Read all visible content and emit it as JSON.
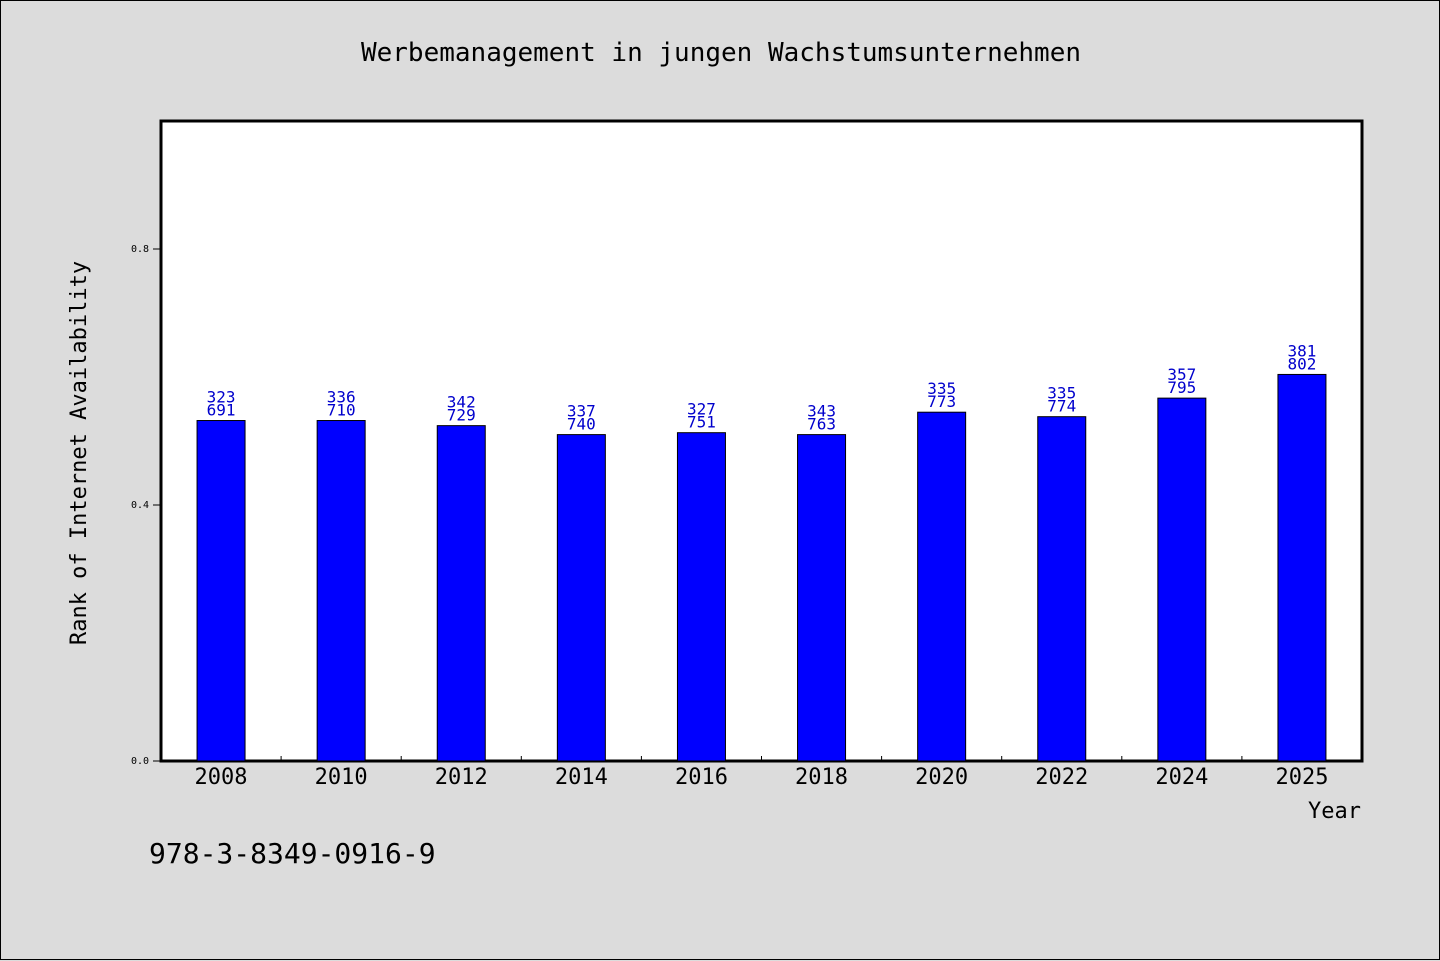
{
  "chart_data": {
    "type": "bar",
    "title": "Werbemanagement in jungen Wachstumsunternehmen",
    "xlabel": "Year",
    "ylabel": "Rank of Internet Availability",
    "categories": [
      "2008",
      "2010",
      "2012",
      "2014",
      "2016",
      "2018",
      "2020",
      "2022",
      "2024",
      "2025"
    ],
    "values": [
      0.532,
      0.532,
      0.524,
      0.51,
      0.513,
      0.51,
      0.545,
      0.538,
      0.567,
      0.604
    ],
    "data_labels_top": [
      "323",
      "336",
      "342",
      "337",
      "327",
      "343",
      "335",
      "335",
      "357",
      "381"
    ],
    "data_labels_bottom": [
      "691",
      "710",
      "729",
      "740",
      "751",
      "763",
      "773",
      "774",
      "795",
      "802"
    ],
    "yticks": [
      0.0,
      0.4,
      0.8
    ],
    "ytick_labels": [
      "0.0",
      "0.4",
      "0.8"
    ],
    "ylim": [
      0,
      1.0
    ],
    "bar_color": "#0000ff",
    "label_color": "#0000cc",
    "grid": false,
    "legend": "none"
  },
  "footer": {
    "isbn": "978-3-8349-0916-9"
  }
}
